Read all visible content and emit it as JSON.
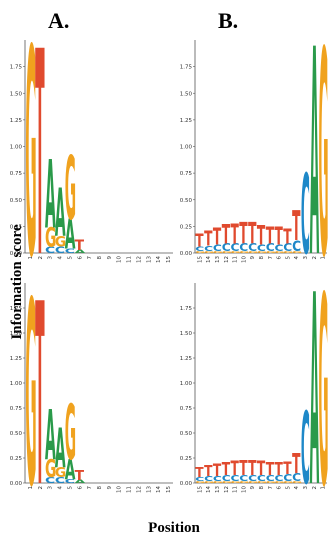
{
  "figure": {
    "ylabel": "Information score",
    "xlabel": "Position"
  },
  "colors": {
    "A": "#2a9a4a",
    "C": "#1e88c8",
    "G": "#f0a21e",
    "T": "#e04a2e"
  },
  "chart_data": [
    {
      "type": "sequence-logo",
      "panel_label": "A.",
      "ylim": [
        0,
        2
      ],
      "yticks": [
        "0.00",
        "0.25",
        "0.50",
        "0.75",
        "1.00",
        "1.25",
        "1.50",
        "1.75"
      ],
      "x": [
        "1",
        "2",
        "3",
        "4",
        "5",
        "6",
        "7",
        "8",
        "9",
        "10",
        "11",
        "12",
        "13",
        "14",
        "15"
      ],
      "positions": [
        [
          [
            "G",
            1.95
          ]
        ],
        [
          [
            "T",
            1.93
          ]
        ],
        [
          [
            "C",
            0.06
          ],
          [
            "G",
            0.18
          ],
          [
            "A",
            0.64
          ]
        ],
        [
          [
            "C",
            0.06
          ],
          [
            "G",
            0.1
          ],
          [
            "A",
            0.45
          ]
        ],
        [
          [
            "C",
            0.04
          ],
          [
            "A",
            0.28
          ],
          [
            "G",
            0.6
          ]
        ],
        [
          [
            "A",
            0.03
          ],
          [
            "T",
            0.1
          ]
        ],
        [],
        [],
        [],
        [],
        [],
        [],
        [],
        [],
        []
      ]
    },
    {
      "type": "sequence-logo",
      "panel_label": "B.",
      "ylim": [
        0,
        2
      ],
      "yticks": [
        "0.00",
        "0.25",
        "0.50",
        "0.75",
        "1.00",
        "1.25",
        "1.50",
        "1.75"
      ],
      "x": [
        "15",
        "14",
        "13",
        "12",
        "11",
        "10",
        "9",
        "8",
        "7",
        "6",
        "5",
        "4",
        "3",
        "2",
        "1"
      ],
      "positions": [
        [
          [
            "G",
            0.02
          ],
          [
            "C",
            0.04
          ],
          [
            "T",
            0.12
          ]
        ],
        [
          [
            "G",
            0.02
          ],
          [
            "C",
            0.05
          ],
          [
            "T",
            0.14
          ]
        ],
        [
          [
            "G",
            0.02
          ],
          [
            "C",
            0.06
          ],
          [
            "T",
            0.16
          ]
        ],
        [
          [
            "G",
            0.02
          ],
          [
            "C",
            0.07
          ],
          [
            "T",
            0.18
          ]
        ],
        [
          [
            "G",
            0.02
          ],
          [
            "C",
            0.07
          ],
          [
            "T",
            0.19
          ]
        ],
        [
          [
            "G",
            0.02
          ],
          [
            "C",
            0.07
          ],
          [
            "T",
            0.2
          ]
        ],
        [
          [
            "G",
            0.02
          ],
          [
            "C",
            0.07
          ],
          [
            "T",
            0.2
          ]
        ],
        [
          [
            "G",
            0.02
          ],
          [
            "C",
            0.06
          ],
          [
            "T",
            0.18
          ]
        ],
        [
          [
            "G",
            0.02
          ],
          [
            "C",
            0.07
          ],
          [
            "T",
            0.16
          ]
        ],
        [
          [
            "G",
            0.02
          ],
          [
            "C",
            0.06
          ],
          [
            "T",
            0.17
          ]
        ],
        [
          [
            "G",
            0.02
          ],
          [
            "C",
            0.07
          ],
          [
            "T",
            0.14
          ]
        ],
        [
          [
            "G",
            0.02
          ],
          [
            "C",
            0.1
          ],
          [
            "T",
            0.28
          ]
        ],
        [
          [
            "C",
            0.75
          ]
        ],
        [
          [
            "A",
            1.95
          ]
        ],
        [
          [
            "G",
            1.93
          ]
        ]
      ]
    },
    {
      "type": "sequence-logo",
      "panel_label": "",
      "ylim": [
        0,
        2
      ],
      "yticks": [
        "0.00",
        "0.25",
        "0.50",
        "0.75",
        "1.00",
        "1.25",
        "1.50",
        "1.75"
      ],
      "x": [
        "1",
        "2",
        "3",
        "4",
        "5",
        "6",
        "7",
        "8",
        "9",
        "10",
        "11",
        "12",
        "13",
        "14",
        "15"
      ],
      "positions": [
        [
          [
            "G",
            1.85
          ]
        ],
        [
          [
            "T",
            1.83
          ]
        ],
        [
          [
            "C",
            0.06
          ],
          [
            "G",
            0.18
          ],
          [
            "A",
            0.5
          ]
        ],
        [
          [
            "C",
            0.06
          ],
          [
            "G",
            0.1
          ],
          [
            "A",
            0.4
          ]
        ],
        [
          [
            "C",
            0.04
          ],
          [
            "A",
            0.2
          ],
          [
            "G",
            0.55
          ]
        ],
        [
          [
            "A",
            0.03
          ],
          [
            "T",
            0.1
          ]
        ],
        [],
        [],
        [],
        [],
        [],
        [],
        [],
        [],
        []
      ]
    },
    {
      "type": "sequence-logo",
      "panel_label": "",
      "ylim": [
        0,
        2
      ],
      "yticks": [
        "0.00",
        "0.25",
        "0.50",
        "0.75",
        "1.00",
        "1.25",
        "1.50",
        "1.75"
      ],
      "x": [
        "15",
        "14",
        "13",
        "12",
        "11",
        "10",
        "9",
        "8",
        "7",
        "6",
        "5",
        "4",
        "3",
        "2",
        "1"
      ],
      "positions": [
        [
          [
            "G",
            0.02
          ],
          [
            "C",
            0.04
          ],
          [
            "T",
            0.1
          ]
        ],
        [
          [
            "G",
            0.02
          ],
          [
            "C",
            0.05
          ],
          [
            "T",
            0.11
          ]
        ],
        [
          [
            "G",
            0.02
          ],
          [
            "C",
            0.05
          ],
          [
            "T",
            0.12
          ]
        ],
        [
          [
            "G",
            0.02
          ],
          [
            "C",
            0.06
          ],
          [
            "T",
            0.13
          ]
        ],
        [
          [
            "G",
            0.02
          ],
          [
            "C",
            0.06
          ],
          [
            "T",
            0.14
          ]
        ],
        [
          [
            "G",
            0.02
          ],
          [
            "C",
            0.06
          ],
          [
            "T",
            0.15
          ]
        ],
        [
          [
            "G",
            0.02
          ],
          [
            "C",
            0.06
          ],
          [
            "T",
            0.15
          ]
        ],
        [
          [
            "G",
            0.02
          ],
          [
            "C",
            0.06
          ],
          [
            "T",
            0.14
          ]
        ],
        [
          [
            "G",
            0.02
          ],
          [
            "C",
            0.06
          ],
          [
            "T",
            0.13
          ]
        ],
        [
          [
            "G",
            0.02
          ],
          [
            "C",
            0.06
          ],
          [
            "T",
            0.13
          ]
        ],
        [
          [
            "G",
            0.02
          ],
          [
            "C",
            0.07
          ],
          [
            "T",
            0.12
          ]
        ],
        [
          [
            "G",
            0.02
          ],
          [
            "C",
            0.08
          ],
          [
            "T",
            0.2
          ]
        ],
        [
          [
            "C",
            0.72
          ]
        ],
        [
          [
            "A",
            1.92
          ]
        ],
        [
          [
            "G",
            1.9
          ]
        ]
      ]
    }
  ]
}
